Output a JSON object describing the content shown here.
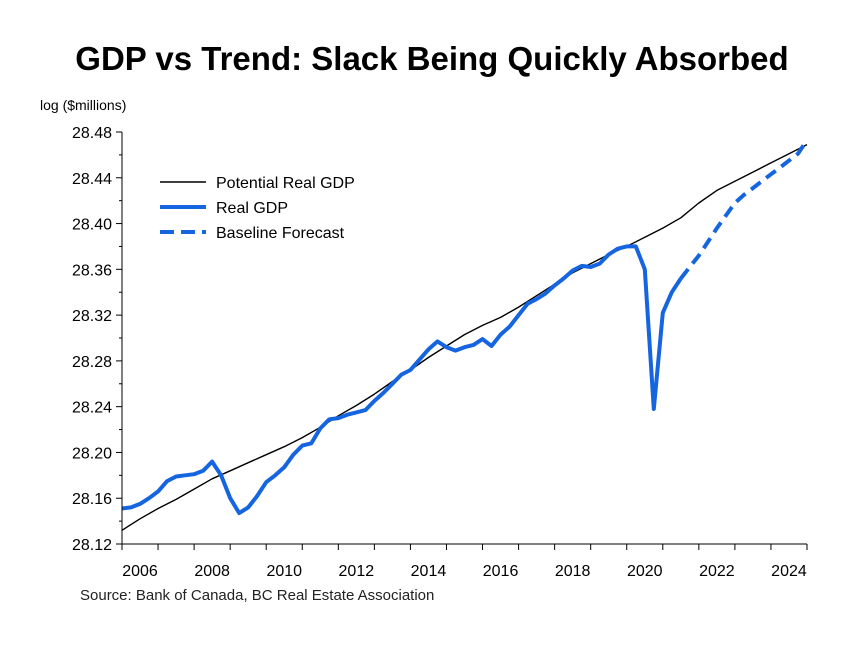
{
  "chart_data": {
    "type": "line",
    "title": "GDP vs Trend: Slack Being Quickly Absorbed",
    "ylabel": "log ($millions)",
    "xlabel": "",
    "source": "Source: Bank of Canada, BC Real Estate Association",
    "xlim": [
      2006.0,
      2025.0
    ],
    "ylim": [
      28.12,
      28.48
    ],
    "x_ticks": [
      2006,
      2008,
      2010,
      2012,
      2014,
      2016,
      2018,
      2020,
      2022,
      2024
    ],
    "y_ticks": [
      28.12,
      28.16,
      28.2,
      28.24,
      28.28,
      28.32,
      28.36,
      28.4,
      28.44,
      28.48
    ],
    "y_tick_labels": [
      "28.12",
      "28.16",
      "28.20",
      "28.24",
      "28.28",
      "28.32",
      "28.36",
      "28.40",
      "28.44",
      "28.48"
    ],
    "grid": false,
    "legend": "top-left",
    "colors": {
      "potential": "#000000",
      "real": "#1565e0",
      "forecast": "#1565e0"
    },
    "series": [
      {
        "name": "Potential Real GDP",
        "style": "solid-thin",
        "points": [
          [
            2006.0,
            28.132
          ],
          [
            2006.5,
            28.142
          ],
          [
            2007.0,
            28.151
          ],
          [
            2007.5,
            28.159
          ],
          [
            2008.0,
            28.168
          ],
          [
            2008.5,
            28.177
          ],
          [
            2009.0,
            28.184
          ],
          [
            2009.5,
            28.191
          ],
          [
            2010.0,
            28.198
          ],
          [
            2010.5,
            28.205
          ],
          [
            2011.0,
            28.213
          ],
          [
            2011.5,
            28.222
          ],
          [
            2012.0,
            28.232
          ],
          [
            2012.5,
            28.241
          ],
          [
            2013.0,
            28.251
          ],
          [
            2013.5,
            28.262
          ],
          [
            2014.0,
            28.272
          ],
          [
            2014.5,
            28.283
          ],
          [
            2015.0,
            28.293
          ],
          [
            2015.5,
            28.303
          ],
          [
            2016.0,
            28.311
          ],
          [
            2016.5,
            28.318
          ],
          [
            2017.0,
            28.327
          ],
          [
            2017.5,
            28.337
          ],
          [
            2018.0,
            28.347
          ],
          [
            2018.5,
            28.357
          ],
          [
            2019.0,
            28.365
          ],
          [
            2019.5,
            28.373
          ],
          [
            2020.0,
            28.38
          ],
          [
            2020.5,
            28.388
          ],
          [
            2021.0,
            28.396
          ],
          [
            2021.5,
            28.405
          ],
          [
            2022.0,
            28.418
          ],
          [
            2022.5,
            28.429
          ],
          [
            2023.0,
            28.437
          ],
          [
            2023.5,
            28.445
          ],
          [
            2024.0,
            28.453
          ],
          [
            2024.5,
            28.461
          ],
          [
            2025.0,
            28.469
          ]
        ]
      },
      {
        "name": "Real GDP",
        "style": "solid-thick",
        "points": [
          [
            2006.0,
            28.151
          ],
          [
            2006.25,
            28.152
          ],
          [
            2006.5,
            28.155
          ],
          [
            2006.75,
            28.16
          ],
          [
            2007.0,
            28.166
          ],
          [
            2007.25,
            28.175
          ],
          [
            2007.5,
            28.179
          ],
          [
            2007.75,
            28.18
          ],
          [
            2008.0,
            28.181
          ],
          [
            2008.25,
            28.184
          ],
          [
            2008.5,
            28.192
          ],
          [
            2008.75,
            28.18
          ],
          [
            2009.0,
            28.16
          ],
          [
            2009.25,
            28.147
          ],
          [
            2009.5,
            28.152
          ],
          [
            2009.75,
            28.162
          ],
          [
            2010.0,
            28.174
          ],
          [
            2010.25,
            28.18
          ],
          [
            2010.5,
            28.187
          ],
          [
            2010.75,
            28.198
          ],
          [
            2011.0,
            28.206
          ],
          [
            2011.25,
            28.208
          ],
          [
            2011.5,
            28.221
          ],
          [
            2011.75,
            28.229
          ],
          [
            2012.0,
            28.23
          ],
          [
            2012.25,
            28.233
          ],
          [
            2012.5,
            28.235
          ],
          [
            2012.75,
            28.237
          ],
          [
            2013.0,
            28.245
          ],
          [
            2013.25,
            28.252
          ],
          [
            2013.5,
            28.26
          ],
          [
            2013.75,
            28.268
          ],
          [
            2014.0,
            28.272
          ],
          [
            2014.25,
            28.281
          ],
          [
            2014.5,
            28.29
          ],
          [
            2014.75,
            28.297
          ],
          [
            2015.0,
            28.292
          ],
          [
            2015.25,
            28.289
          ],
          [
            2015.5,
            28.292
          ],
          [
            2015.75,
            28.294
          ],
          [
            2016.0,
            28.299
          ],
          [
            2016.25,
            28.293
          ],
          [
            2016.5,
            28.303
          ],
          [
            2016.75,
            28.31
          ],
          [
            2017.0,
            28.32
          ],
          [
            2017.25,
            28.33
          ],
          [
            2017.5,
            28.334
          ],
          [
            2017.75,
            28.339
          ],
          [
            2018.0,
            28.346
          ],
          [
            2018.25,
            28.352
          ],
          [
            2018.5,
            28.359
          ],
          [
            2018.75,
            28.363
          ],
          [
            2019.0,
            28.362
          ],
          [
            2019.25,
            28.365
          ],
          [
            2019.5,
            28.373
          ],
          [
            2019.75,
            28.378
          ],
          [
            2020.0,
            28.38
          ],
          [
            2020.25,
            28.38
          ],
          [
            2020.5,
            28.36
          ],
          [
            2020.75,
            28.238
          ],
          [
            2021.0,
            28.322
          ],
          [
            2021.25,
            28.34
          ],
          [
            2021.5,
            28.352
          ]
        ]
      },
      {
        "name": "Baseline Forecast",
        "style": "dashed-thick",
        "points": [
          [
            2021.5,
            28.352
          ],
          [
            2021.75,
            28.362
          ],
          [
            2022.0,
            28.372
          ],
          [
            2022.25,
            28.384
          ],
          [
            2022.5,
            28.396
          ],
          [
            2022.75,
            28.407
          ],
          [
            2023.0,
            28.418
          ],
          [
            2023.25,
            28.425
          ],
          [
            2023.5,
            28.431
          ],
          [
            2023.75,
            28.437
          ],
          [
            2024.0,
            28.443
          ],
          [
            2024.25,
            28.449
          ],
          [
            2024.5,
            28.455
          ],
          [
            2024.75,
            28.461
          ],
          [
            2025.0,
            28.473
          ]
        ]
      }
    ]
  }
}
